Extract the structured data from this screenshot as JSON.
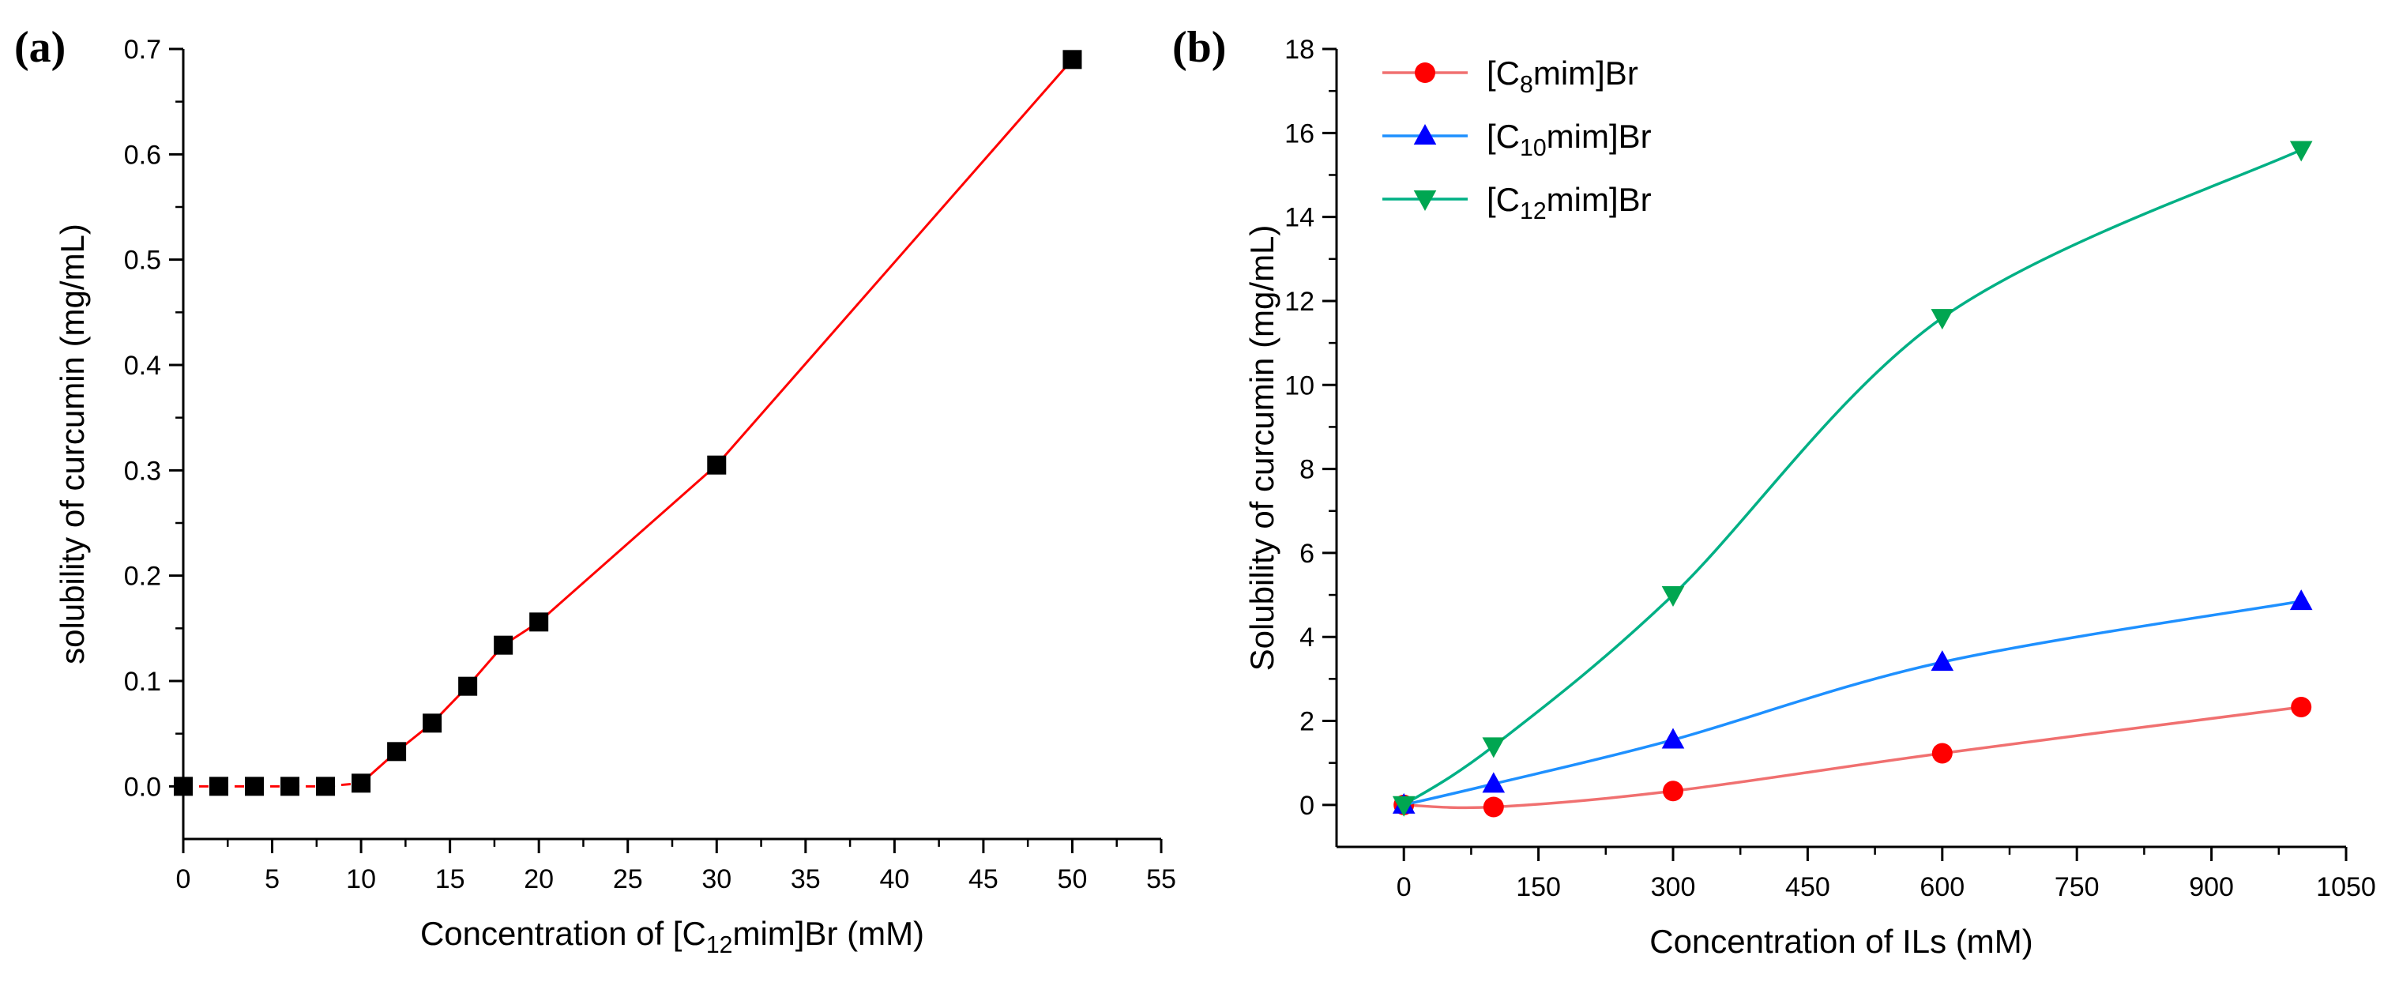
{
  "chart_data": [
    {
      "type": "scatter",
      "panel_label": "(a)",
      "xlabel": {
        "pre": "Concentration of [C",
        "sub": "12",
        "post": "mim]Br (mM)"
      },
      "ylabel": "solubility of curcumin (mg/mL)",
      "xlim": [
        0,
        55
      ],
      "ylim": [
        -0.05,
        0.7
      ],
      "xticks": [
        0,
        5,
        10,
        15,
        20,
        25,
        30,
        35,
        40,
        45,
        50,
        55
      ],
      "xtick_labels": [
        "0",
        "5",
        "10",
        "15",
        "20",
        "25",
        "30",
        "35",
        "40",
        "45",
        "50",
        "55"
      ],
      "yticks": [
        0.0,
        0.1,
        0.2,
        0.3,
        0.4,
        0.5,
        0.6,
        0.7
      ],
      "ytick_labels": [
        "0.0",
        "0.1",
        "0.2",
        "0.3",
        "0.4",
        "0.5",
        "0.6",
        "0.7"
      ],
      "series": [
        {
          "name": "[C12mim]Br",
          "color": "#ff0000",
          "marker_color": "#000000",
          "marker": "square",
          "x": [
            0,
            2,
            4,
            6,
            8,
            10,
            12,
            14,
            16,
            18,
            20,
            30,
            50
          ],
          "y": [
            0.0,
            0.0,
            0.0,
            0.0,
            0.0,
            0.003,
            0.033,
            0.06,
            0.095,
            0.134,
            0.156,
            0.305,
            0.69
          ]
        }
      ]
    },
    {
      "type": "line",
      "panel_label": "(b)",
      "xlabel": "Concentration of ILs (mM)",
      "ylabel": "Solubility of curcumin (mg/mL)",
      "xlim": [
        -75,
        1050
      ],
      "ylim": [
        -1,
        18
      ],
      "xticks": [
        0,
        150,
        300,
        450,
        600,
        750,
        900,
        1050
      ],
      "xtick_labels": [
        "0",
        "150",
        "300",
        "450",
        "600",
        "750",
        "900",
        "1050"
      ],
      "yticks": [
        0,
        2,
        4,
        6,
        8,
        10,
        12,
        14,
        16,
        18
      ],
      "ytick_labels": [
        "0",
        "2",
        "4",
        "6",
        "8",
        "10",
        "12",
        "14",
        "16",
        "18"
      ],
      "legend": "top-left",
      "series": [
        {
          "name": "[C8mim]Br",
          "label": {
            "pre": "[C",
            "sub": "8",
            "post": "mim]Br"
          },
          "color": "#f07070",
          "marker_color": "#ff0000",
          "marker": "circle",
          "x": [
            0,
            100,
            300,
            600,
            1000
          ],
          "y": [
            0.0,
            -0.05,
            0.33,
            1.23,
            2.33
          ]
        },
        {
          "name": "[C10mim]Br",
          "label": {
            "pre": "[C",
            "sub": "10",
            "post": "mim]Br"
          },
          "color": "#1e90ff",
          "marker_color": "#0000ff",
          "marker": "triangle-up",
          "x": [
            0,
            100,
            300,
            600,
            1000
          ],
          "y": [
            0.0,
            0.5,
            1.55,
            3.4,
            4.85
          ]
        },
        {
          "name": "[C12mim]Br",
          "label": {
            "pre": "[C",
            "sub": "12",
            "post": "mim]Br"
          },
          "color": "#00b085",
          "marker_color": "#00a651",
          "marker": "triangle-down",
          "x": [
            0,
            100,
            300,
            600,
            1000
          ],
          "y": [
            0.0,
            1.4,
            5.0,
            11.6,
            15.6
          ]
        }
      ]
    }
  ]
}
